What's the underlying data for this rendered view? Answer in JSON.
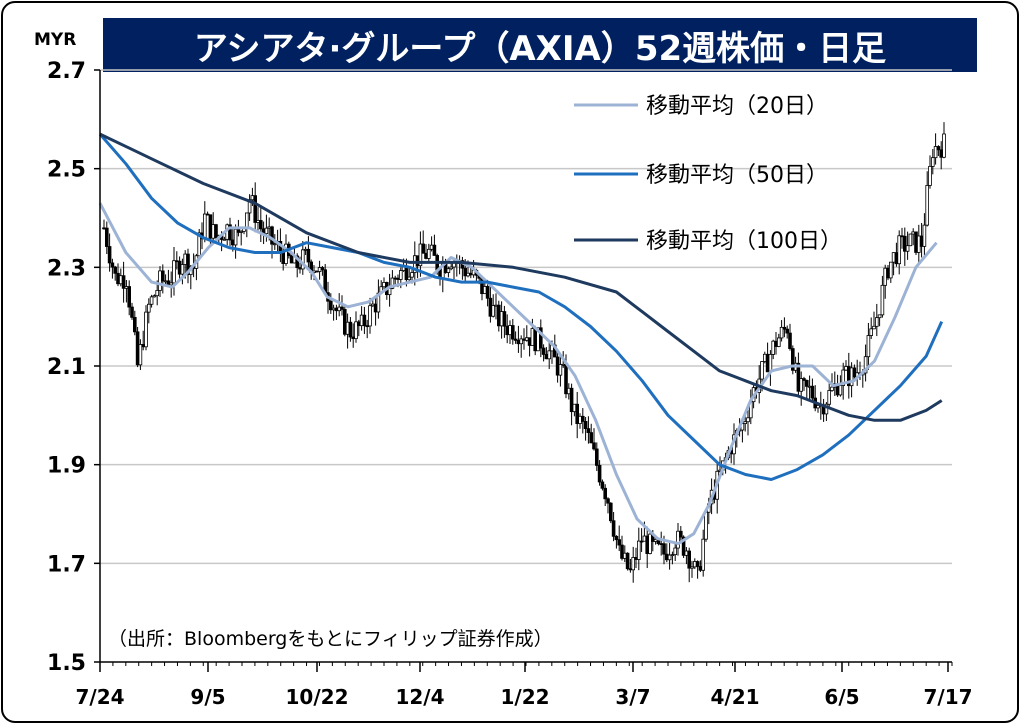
{
  "header": {
    "title": "アシアタ·グループ（AXIA）52週株価・日足",
    "unit": "MYR"
  },
  "chart_data": {
    "type": "candlestick",
    "title": "アシアタ·グループ（AXIA）52週株価・日足",
    "ylabel": "MYR",
    "ylim": [
      1.5,
      2.7
    ],
    "yticks": [
      "2.7",
      "2.5",
      "2.3",
      "2.1",
      "1.9",
      "1.7",
      "1.5"
    ],
    "xticks": [
      "7/24",
      "9/5",
      "10/22",
      "12/4",
      "1/22",
      "3/7",
      "4/21",
      "6/5",
      "7/17"
    ],
    "grid": true,
    "legend_position": "top-right",
    "source": "（出所：Bloombergをもとにフィリップ証券作成）",
    "price_anchors": [
      [
        0,
        2.38
      ],
      [
        4,
        2.28
      ],
      [
        8,
        2.28
      ],
      [
        12,
        2.1
      ],
      [
        16,
        2.22
      ],
      [
        20,
        2.27
      ],
      [
        24,
        2.28
      ],
      [
        28,
        2.32
      ],
      [
        32,
        2.3
      ],
      [
        36,
        2.4
      ],
      [
        40,
        2.36
      ],
      [
        44,
        2.38
      ],
      [
        48,
        2.36
      ],
      [
        52,
        2.44
      ],
      [
        56,
        2.38
      ],
      [
        60,
        2.35
      ],
      [
        64,
        2.33
      ],
      [
        68,
        2.3
      ],
      [
        72,
        2.32
      ],
      [
        76,
        2.3
      ],
      [
        80,
        2.25
      ],
      [
        84,
        2.2
      ],
      [
        88,
        2.17
      ],
      [
        92,
        2.18
      ],
      [
        96,
        2.22
      ],
      [
        100,
        2.25
      ],
      [
        104,
        2.28
      ],
      [
        108,
        2.3
      ],
      [
        112,
        2.32
      ],
      [
        116,
        2.33
      ],
      [
        120,
        2.3
      ],
      [
        124,
        2.32
      ],
      [
        128,
        2.3
      ],
      [
        132,
        2.28
      ],
      [
        136,
        2.25
      ],
      [
        140,
        2.2
      ],
      [
        144,
        2.18
      ],
      [
        148,
        2.17
      ],
      [
        152,
        2.16
      ],
      [
        156,
        2.15
      ],
      [
        160,
        2.12
      ],
      [
        164,
        2.08
      ],
      [
        168,
        2.0
      ],
      [
        172,
        1.97
      ],
      [
        176,
        1.9
      ],
      [
        180,
        1.83
      ],
      [
        184,
        1.72
      ],
      [
        188,
        1.68
      ],
      [
        192,
        1.75
      ],
      [
        196,
        1.73
      ],
      [
        200,
        1.72
      ],
      [
        204,
        1.75
      ],
      [
        208,
        1.73
      ],
      [
        212,
        1.67
      ],
      [
        216,
        1.82
      ],
      [
        220,
        1.88
      ],
      [
        224,
        1.94
      ],
      [
        228,
        1.98
      ],
      [
        232,
        2.05
      ],
      [
        236,
        2.1
      ],
      [
        240,
        2.15
      ],
      [
        244,
        2.18
      ],
      [
        248,
        2.05
      ],
      [
        252,
        2.05
      ],
      [
        256,
        2.02
      ],
      [
        260,
        2.05
      ],
      [
        264,
        2.08
      ],
      [
        268,
        2.08
      ],
      [
        272,
        2.12
      ],
      [
        276,
        2.2
      ],
      [
        280,
        2.3
      ],
      [
        284,
        2.34
      ],
      [
        288,
        2.35
      ],
      [
        292,
        2.35
      ],
      [
        296,
        2.54
      ],
      [
        300,
        2.55
      ]
    ],
    "series": [
      {
        "name": "移動平均（20日）",
        "color": "#9db3d5",
        "data": [
          [
            0,
            2.43
          ],
          [
            10,
            2.33
          ],
          [
            20,
            2.27
          ],
          [
            28,
            2.26
          ],
          [
            34,
            2.29
          ],
          [
            42,
            2.34
          ],
          [
            50,
            2.38
          ],
          [
            58,
            2.38
          ],
          [
            66,
            2.36
          ],
          [
            74,
            2.33
          ],
          [
            82,
            2.29
          ],
          [
            88,
            2.24
          ],
          [
            96,
            2.22
          ],
          [
            104,
            2.23
          ],
          [
            112,
            2.26
          ],
          [
            120,
            2.27
          ],
          [
            128,
            2.28
          ],
          [
            136,
            2.32
          ],
          [
            144,
            2.3
          ],
          [
            152,
            2.26
          ],
          [
            160,
            2.22
          ],
          [
            168,
            2.18
          ],
          [
            176,
            2.14
          ],
          [
            184,
            2.08
          ],
          [
            192,
            1.99
          ],
          [
            200,
            1.88
          ],
          [
            208,
            1.79
          ],
          [
            216,
            1.75
          ],
          [
            224,
            1.74
          ],
          [
            230,
            1.76
          ],
          [
            236,
            1.82
          ],
          [
            244,
            1.93
          ],
          [
            252,
            2.03
          ],
          [
            260,
            2.09
          ],
          [
            268,
            2.1
          ],
          [
            276,
            2.1
          ],
          [
            284,
            2.06
          ],
          [
            292,
            2.07
          ],
          [
            300,
            2.11
          ],
          [
            308,
            2.2
          ],
          [
            316,
            2.3
          ],
          [
            324,
            2.35
          ]
        ]
      },
      {
        "name": "移動平均（50日）",
        "color": "#1f6fbf",
        "data": [
          [
            0,
            2.57
          ],
          [
            10,
            2.51
          ],
          [
            20,
            2.44
          ],
          [
            30,
            2.39
          ],
          [
            40,
            2.36
          ],
          [
            50,
            2.34
          ],
          [
            60,
            2.33
          ],
          [
            70,
            2.33
          ],
          [
            80,
            2.35
          ],
          [
            90,
            2.34
          ],
          [
            100,
            2.33
          ],
          [
            110,
            2.31
          ],
          [
            120,
            2.3
          ],
          [
            130,
            2.28
          ],
          [
            140,
            2.27
          ],
          [
            150,
            2.27
          ],
          [
            160,
            2.26
          ],
          [
            170,
            2.25
          ],
          [
            180,
            2.22
          ],
          [
            190,
            2.18
          ],
          [
            200,
            2.13
          ],
          [
            210,
            2.07
          ],
          [
            220,
            2.0
          ],
          [
            230,
            1.95
          ],
          [
            240,
            1.9
          ],
          [
            250,
            1.88
          ],
          [
            260,
            1.87
          ],
          [
            270,
            1.89
          ],
          [
            280,
            1.92
          ],
          [
            290,
            1.96
          ],
          [
            300,
            2.01
          ],
          [
            310,
            2.06
          ],
          [
            320,
            2.12
          ],
          [
            326,
            2.19
          ]
        ]
      },
      {
        "name": "移動平均（100日）",
        "color": "#1f3a5f",
        "data": [
          [
            0,
            2.57
          ],
          [
            20,
            2.52
          ],
          [
            40,
            2.47
          ],
          [
            60,
            2.43
          ],
          [
            80,
            2.37
          ],
          [
            100,
            2.33
          ],
          [
            120,
            2.31
          ],
          [
            140,
            2.31
          ],
          [
            160,
            2.3
          ],
          [
            180,
            2.28
          ],
          [
            200,
            2.25
          ],
          [
            210,
            2.21
          ],
          [
            220,
            2.17
          ],
          [
            230,
            2.13
          ],
          [
            240,
            2.09
          ],
          [
            250,
            2.07
          ],
          [
            260,
            2.05
          ],
          [
            270,
            2.04
          ],
          [
            280,
            2.02
          ],
          [
            290,
            2.0
          ],
          [
            300,
            1.99
          ],
          [
            310,
            1.99
          ],
          [
            320,
            2.01
          ],
          [
            326,
            2.03
          ]
        ]
      }
    ]
  }
}
